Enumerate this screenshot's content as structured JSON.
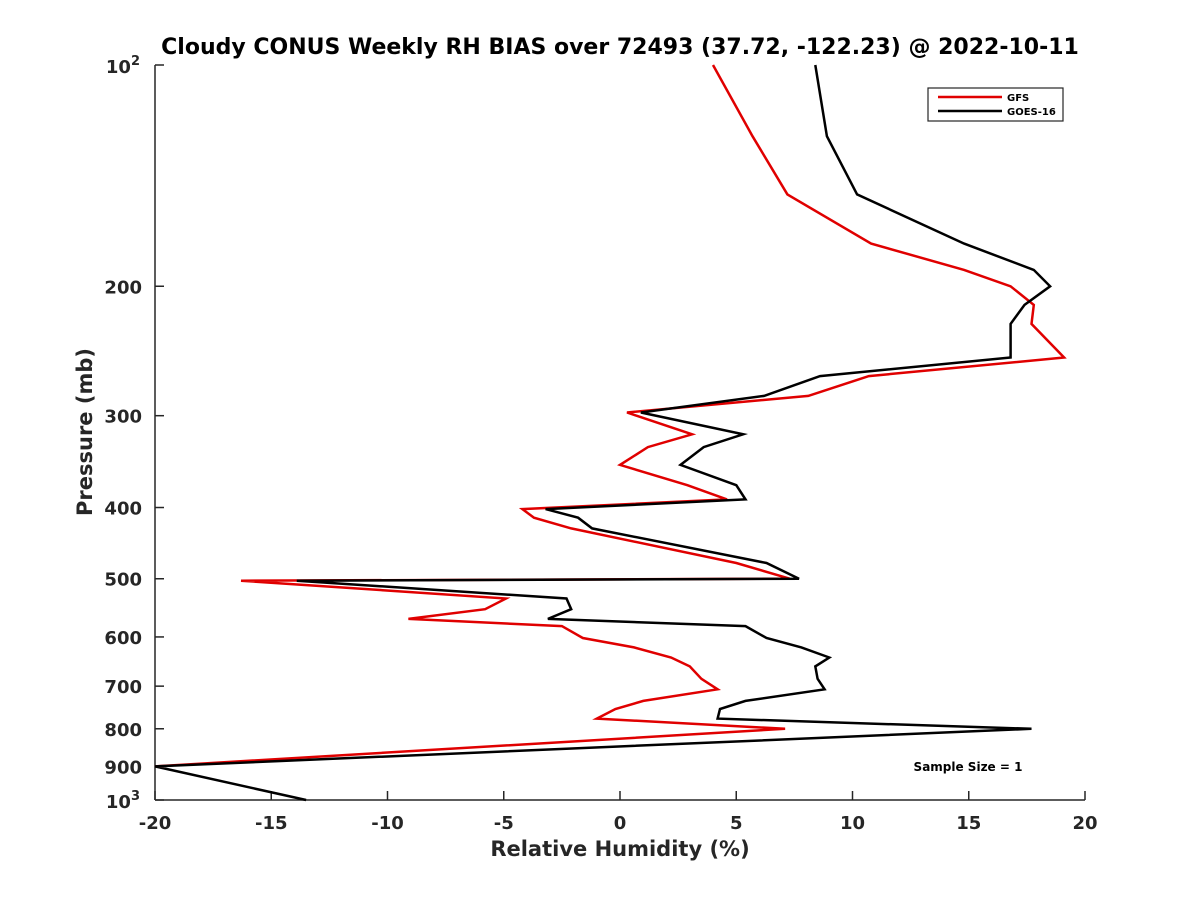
{
  "chart_data": {
    "type": "line",
    "title": "Cloudy CONUS Weekly RH BIAS over 72493 (37.72, -122.23) @ 2022-10-11",
    "xlabel": "Relative Humidity (%)",
    "ylabel": "Pressure (mb)",
    "xlim": [
      -20,
      20
    ],
    "ylim": [
      100,
      1000
    ],
    "y_scale": "log",
    "y_reversed": true,
    "grid": false,
    "legend_position": "top-right",
    "x_ticks": [
      "-20",
      "-15",
      "-10",
      "-5",
      "0",
      "5",
      "10",
      "15",
      "20"
    ],
    "y_ticks": [
      {
        "value": 200,
        "label": "200"
      },
      {
        "value": 300,
        "label": "300"
      },
      {
        "value": 400,
        "label": "400"
      },
      {
        "value": 500,
        "label": "500"
      },
      {
        "value": 600,
        "label": "600"
      },
      {
        "value": 700,
        "label": "700"
      },
      {
        "value": 800,
        "label": "800"
      },
      {
        "value": 900,
        "label": "900"
      }
    ],
    "y_tick_top": {
      "base": "10",
      "exp": "2"
    },
    "y_tick_bottom": {
      "base": "10",
      "exp": "3"
    },
    "annotation": "Sample Size = 1",
    "series": [
      {
        "name": "GFS",
        "color": "#e00000",
        "points": [
          [
            4.0,
            100
          ],
          [
            5.7,
            125
          ],
          [
            7.2,
            150
          ],
          [
            10.8,
            175
          ],
          [
            14.8,
            190
          ],
          [
            16.8,
            200
          ],
          [
            17.8,
            212
          ],
          [
            17.7,
            225
          ],
          [
            19.1,
            250
          ],
          [
            10.7,
            265
          ],
          [
            8.1,
            282
          ],
          [
            0.3,
            297
          ],
          [
            3.1,
            318
          ],
          [
            1.2,
            331
          ],
          [
            0.0,
            350
          ],
          [
            2.9,
            373
          ],
          [
            4.6,
            390
          ],
          [
            -4.2,
            402
          ],
          [
            -3.7,
            413
          ],
          [
            -2.1,
            427
          ],
          [
            5.0,
            476
          ],
          [
            7.3,
            500
          ],
          [
            -16.3,
            503
          ],
          [
            -4.9,
            532
          ],
          [
            -5.8,
            550
          ],
          [
            -9.1,
            567
          ],
          [
            -2.5,
            580
          ],
          [
            -1.6,
            602
          ],
          [
            0.6,
            620
          ],
          [
            2.2,
            640
          ],
          [
            3.0,
            658
          ],
          [
            3.5,
            684
          ],
          [
            4.2,
            707
          ],
          [
            1.0,
            733
          ],
          [
            -0.2,
            752
          ],
          [
            -1.0,
            775
          ],
          [
            7.1,
            800
          ],
          [
            -20.0,
            900
          ]
        ]
      },
      {
        "name": "GOES-16",
        "color": "#000000",
        "points": [
          [
            8.4,
            100
          ],
          [
            8.9,
            125
          ],
          [
            10.2,
            150
          ],
          [
            14.8,
            175
          ],
          [
            17.8,
            190
          ],
          [
            18.5,
            200
          ],
          [
            17.4,
            212
          ],
          [
            16.8,
            225
          ],
          [
            16.8,
            250
          ],
          [
            8.6,
            265
          ],
          [
            6.2,
            282
          ],
          [
            0.9,
            297
          ],
          [
            5.3,
            318
          ],
          [
            3.6,
            331
          ],
          [
            2.6,
            350
          ],
          [
            5.0,
            373
          ],
          [
            5.4,
            390
          ],
          [
            -3.2,
            402
          ],
          [
            -1.8,
            413
          ],
          [
            -1.2,
            427
          ],
          [
            6.3,
            476
          ],
          [
            7.7,
            500
          ],
          [
            -13.9,
            503
          ],
          [
            -2.3,
            532
          ],
          [
            -2.1,
            550
          ],
          [
            -3.1,
            567
          ],
          [
            5.4,
            580
          ],
          [
            6.3,
            602
          ],
          [
            7.8,
            620
          ],
          [
            9.0,
            640
          ],
          [
            8.4,
            658
          ],
          [
            8.5,
            684
          ],
          [
            8.8,
            707
          ],
          [
            5.4,
            733
          ],
          [
            4.3,
            752
          ],
          [
            4.2,
            775
          ],
          [
            17.7,
            800
          ],
          [
            -20.0,
            900
          ],
          [
            -13.5,
            1000
          ]
        ]
      }
    ]
  }
}
